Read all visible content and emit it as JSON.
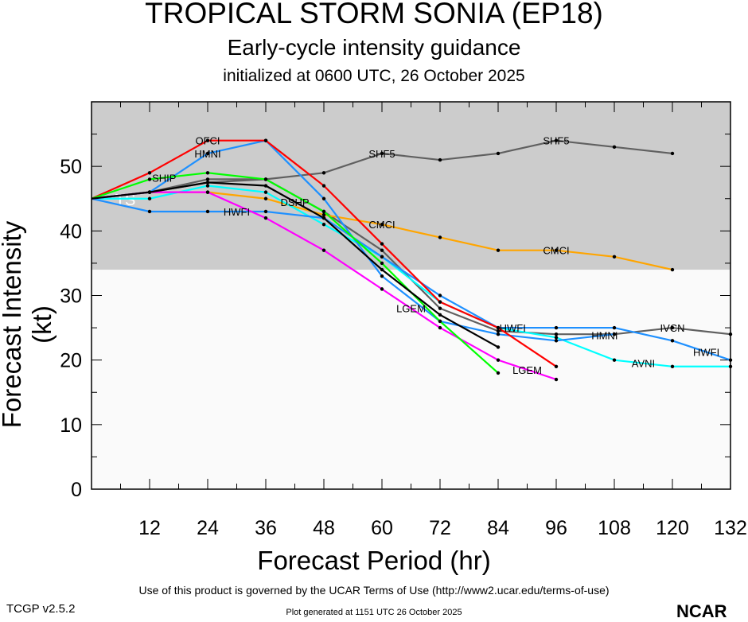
{
  "chart_data": {
    "type": "line",
    "title": "TROPICAL STORM SONIA (EP18)",
    "subtitle": "Early-cycle intensity guidance",
    "subtitle2": "initialized at 0600 UTC, 26 October 2025",
    "xlabel": "Forecast Period (hr)",
    "ylabel": "Forecast Intensity (kt)",
    "xlim": [
      0,
      132
    ],
    "ylim": [
      0,
      60
    ],
    "xticks": [
      12,
      24,
      36,
      48,
      60,
      72,
      84,
      96,
      108,
      120,
      132
    ],
    "yticks": [
      0,
      10,
      20,
      30,
      40,
      50
    ],
    "band": {
      "label": "TS",
      "from": 34,
      "to": 60,
      "color": "#cccccc"
    },
    "background": "#fafafa",
    "x": [
      0,
      12,
      24,
      36,
      48,
      60,
      72,
      84,
      96,
      108,
      120,
      132
    ],
    "series": [
      {
        "name": "SHF5",
        "color": "#606060",
        "values": [
          45,
          46,
          48,
          48,
          49,
          52,
          51,
          52,
          54,
          53,
          52,
          null
        ]
      },
      {
        "name": "IVCN",
        "color": "#606060",
        "values": [
          45,
          46,
          47.5,
          48,
          43,
          37,
          28,
          24.5,
          24,
          24,
          25,
          24
        ]
      },
      {
        "name": "CMCI",
        "color": "#ffa500",
        "values": [
          45,
          46,
          46,
          45,
          42.5,
          41,
          39,
          37,
          37,
          36,
          34,
          null
        ]
      },
      {
        "name": "AVNI",
        "color": "#00ffff",
        "values": [
          45,
          45,
          47,
          46,
          41,
          36,
          29,
          25,
          23.5,
          20,
          19,
          19
        ]
      },
      {
        "name": "HWFI",
        "color": "#1e90ff",
        "values": [
          45,
          43,
          43,
          43,
          42,
          36,
          30,
          25,
          25,
          25,
          23,
          20
        ]
      },
      {
        "name": "HMNI",
        "color": "#1e90ff",
        "values": [
          45,
          46,
          52,
          54,
          45,
          33,
          26,
          24,
          23,
          24,
          null,
          null
        ]
      },
      {
        "name": "OFCI",
        "color": "#ff0000",
        "values": [
          45,
          49,
          54,
          54,
          47,
          38,
          29,
          25,
          19,
          null,
          null,
          null
        ]
      },
      {
        "name": "LGEM",
        "color": "#ff00ff",
        "values": [
          45,
          46,
          46,
          42,
          37,
          31,
          25,
          20,
          17,
          null,
          null,
          null
        ]
      },
      {
        "name": "SHIP",
        "color": "#00ff00",
        "values": [
          45,
          48,
          49,
          48,
          43,
          35,
          26,
          18,
          null,
          null,
          null,
          null
        ]
      },
      {
        "name": "DSHP",
        "color": "#000000",
        "values": [
          45,
          46,
          47.5,
          47,
          42,
          34,
          27,
          22,
          null,
          null,
          null,
          null
        ]
      }
    ]
  },
  "footer": {
    "terms": "Use of this product is governed by the UCAR Terms of Use (http://www2.ucar.edu/terms-of-use)",
    "generated": "Plot generated at 1151 UTC   26 October 2025",
    "version": "TCGP v2.5.2",
    "logo": "NCAR"
  }
}
